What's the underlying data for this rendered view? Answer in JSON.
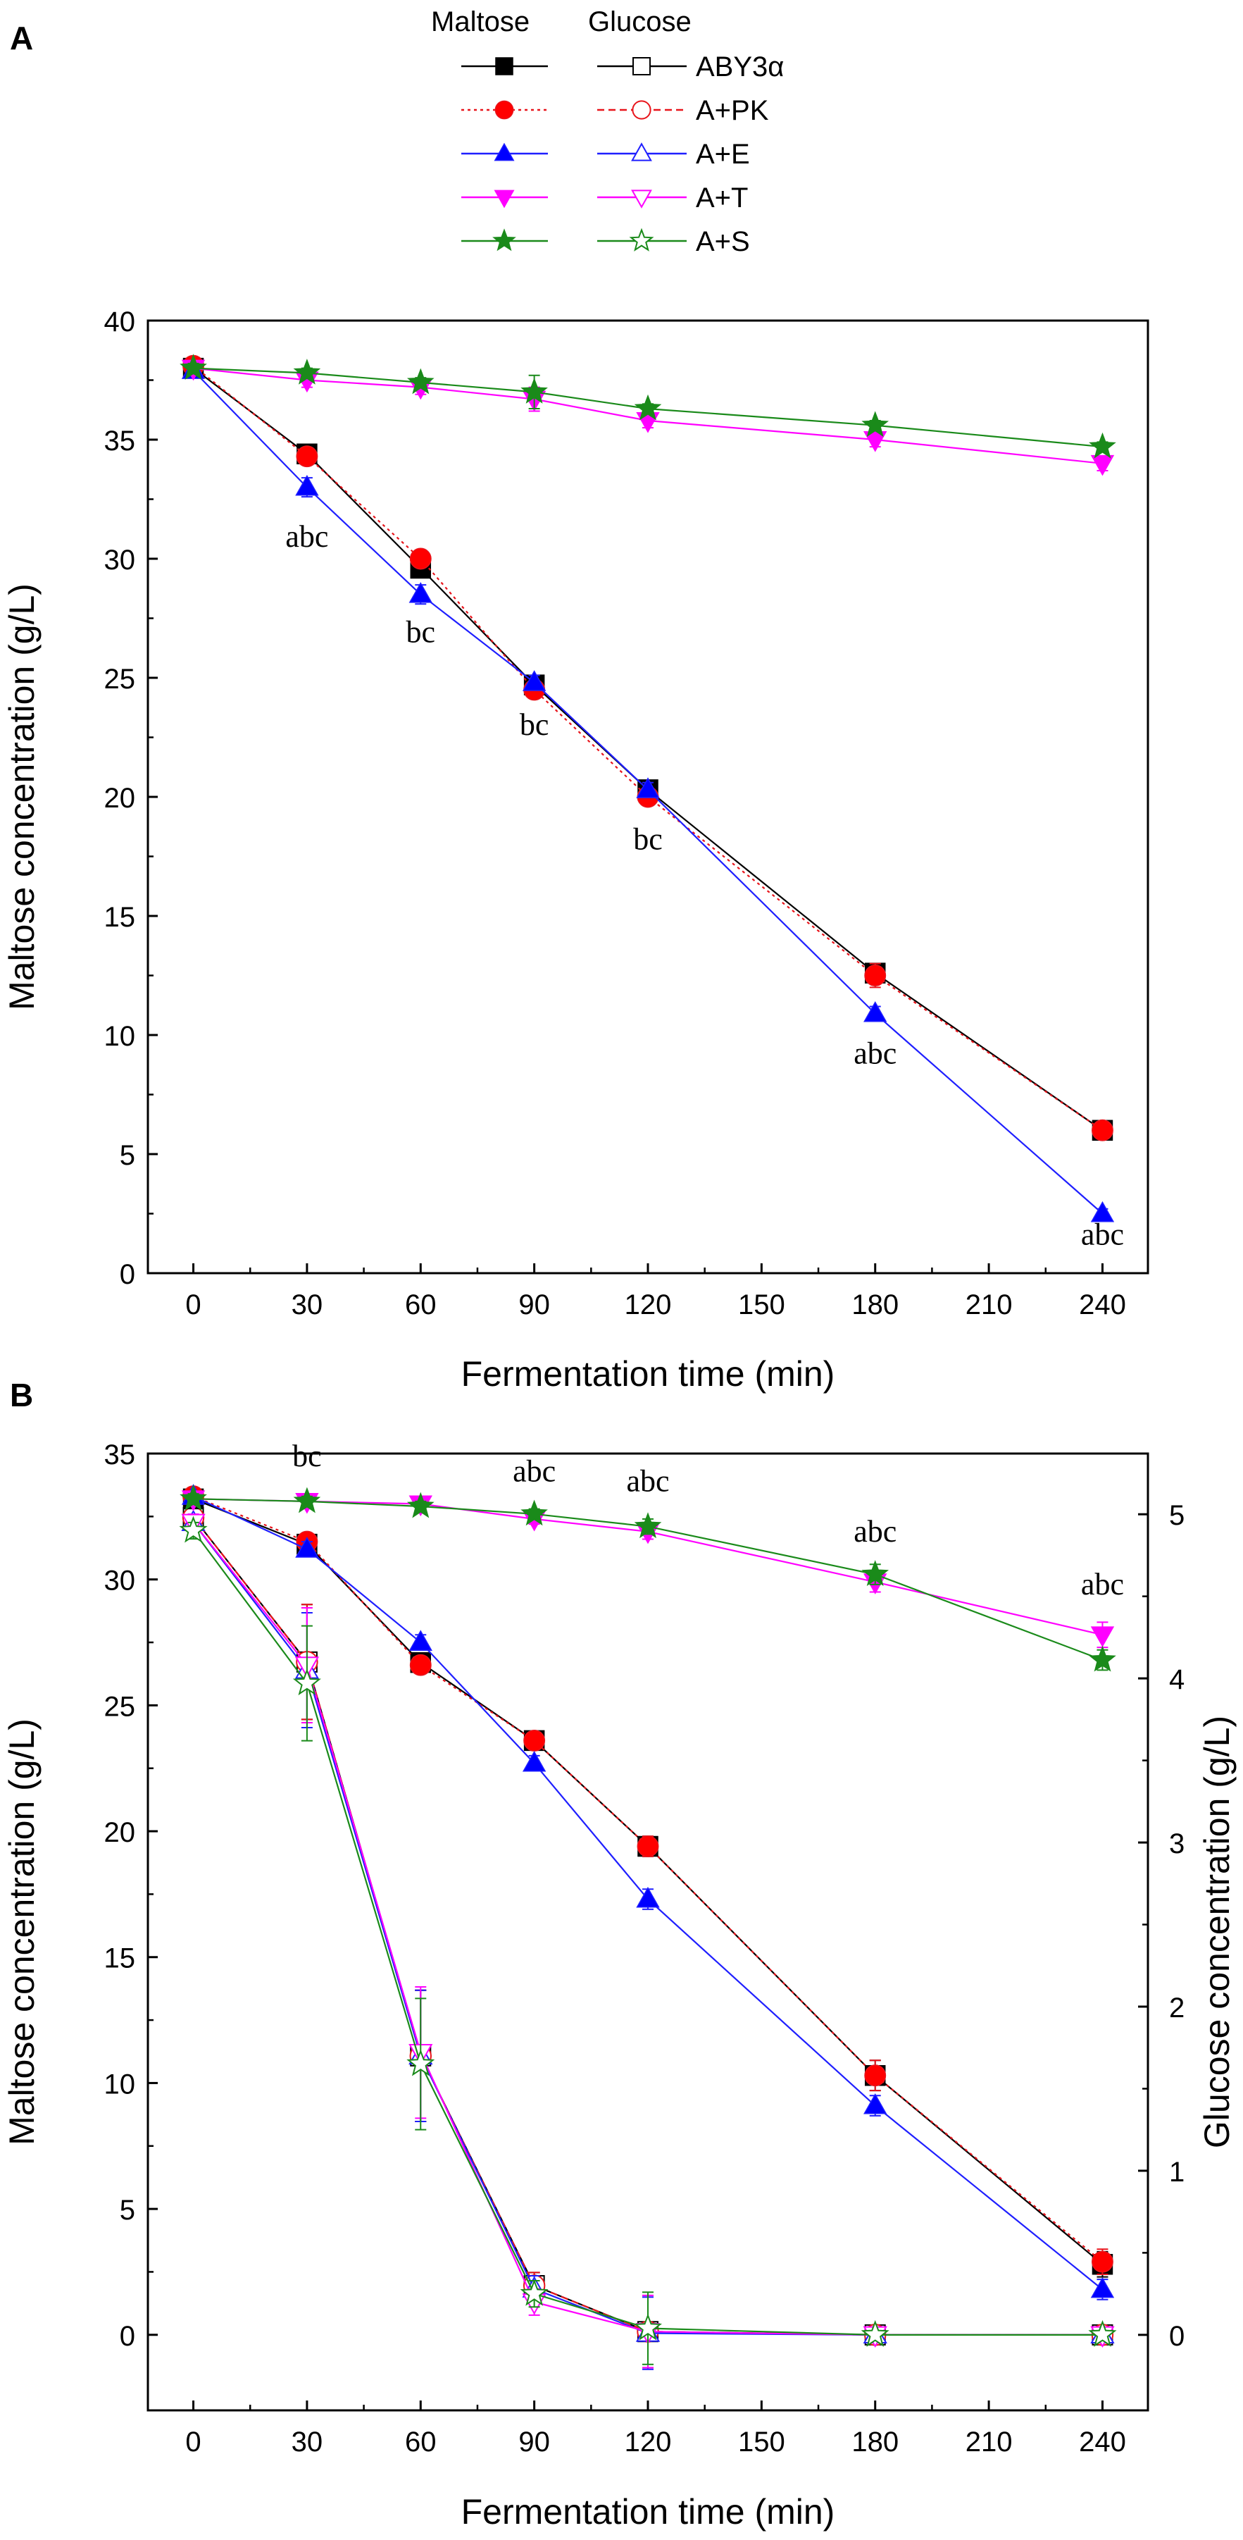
{
  "legend": {
    "header_maltose": "Maltose",
    "header_glucose": "Glucose",
    "entries": [
      {
        "label": "ABY3α",
        "color": "#000000",
        "maltose_marker": "square",
        "glucose_marker": "square-open",
        "maltose_dash": "solid",
        "glucose_dash": "solid",
        "marker_fill": "#000000"
      },
      {
        "label": "A+PK",
        "color": "#e8141b",
        "maltose_marker": "circle",
        "glucose_marker": "circle-open",
        "maltose_dash": "dotted",
        "glucose_dash": "dashed",
        "marker_fill": "#ff0000"
      },
      {
        "label": "A+E",
        "color": "#1f1fff",
        "maltose_marker": "triangle-up",
        "glucose_marker": "triangle-up-open",
        "maltose_dash": "solid",
        "glucose_dash": "solid",
        "marker_fill": "#0000ff"
      },
      {
        "label": "A+T",
        "color": "#ff00ff",
        "maltose_marker": "triangle-down",
        "glucose_marker": "triangle-down-open",
        "maltose_dash": "solid",
        "glucose_dash": "solid",
        "marker_fill": "#ff00ff"
      },
      {
        "label": "A+S",
        "color": "#1a8a1a",
        "maltose_marker": "star",
        "glucose_marker": "star-open",
        "maltose_dash": "solid",
        "glucose_dash": "solid",
        "marker_fill": "#1a8a1a"
      }
    ]
  },
  "chart_data": [
    {
      "panel": "A",
      "type": "line",
      "xlabel": "Fermentation time (min)",
      "ylabel": "Maltose concentration (g/L)",
      "xlim": [
        -12,
        252
      ],
      "ylim": [
        0,
        40
      ],
      "xticks": [
        0,
        30,
        60,
        90,
        120,
        150,
        180,
        210,
        240
      ],
      "yticks": [
        0,
        5,
        10,
        15,
        20,
        25,
        30,
        35,
        40
      ],
      "series": [
        {
          "name": "ABY3α",
          "kind": "maltose",
          "x": [
            0,
            30,
            60,
            90,
            120,
            180,
            240
          ],
          "y": [
            38.0,
            34.4,
            29.6,
            24.7,
            20.3,
            12.6,
            6.0
          ],
          "err": [
            0.2,
            0.2,
            0.3,
            0.3,
            0.3,
            0.4,
            0.3
          ]
        },
        {
          "name": "A+PK",
          "kind": "maltose",
          "x": [
            0,
            30,
            60,
            90,
            120,
            180,
            240
          ],
          "y": [
            38.1,
            34.3,
            30.0,
            24.5,
            20.0,
            12.5,
            6.0
          ],
          "err": [
            0.2,
            0.3,
            0.3,
            0.3,
            0.3,
            0.5,
            0.3
          ]
        },
        {
          "name": "A+E",
          "kind": "maltose",
          "x": [
            0,
            30,
            60,
            90,
            120,
            180,
            240
          ],
          "y": [
            37.9,
            33.0,
            28.5,
            24.8,
            20.3,
            10.9,
            2.5
          ],
          "err": [
            0.2,
            0.4,
            0.4,
            0.3,
            0.3,
            0.3,
            0.2
          ]
        },
        {
          "name": "A+T",
          "kind": "maltose",
          "x": [
            0,
            30,
            60,
            90,
            120,
            180,
            240
          ],
          "y": [
            38.0,
            37.5,
            37.2,
            36.7,
            35.8,
            35.0,
            34.0
          ],
          "err": [
            0.3,
            0.3,
            0.3,
            0.5,
            0.3,
            0.3,
            0.3
          ]
        },
        {
          "name": "A+S",
          "kind": "maltose",
          "x": [
            0,
            30,
            60,
            90,
            120,
            180,
            240
          ],
          "y": [
            38.0,
            37.8,
            37.4,
            37.0,
            36.3,
            35.6,
            34.7
          ],
          "err": [
            0.2,
            0.2,
            0.2,
            0.7,
            0.2,
            0.2,
            0.2
          ]
        }
      ],
      "annotations": [
        {
          "x": 30,
          "y": 30.5,
          "text": "abc"
        },
        {
          "x": 60,
          "y": 26.5,
          "text": "bc"
        },
        {
          "x": 90,
          "y": 22.6,
          "text": "bc"
        },
        {
          "x": 120,
          "y": 17.8,
          "text": "bc"
        },
        {
          "x": 180,
          "y": 8.8,
          "text": "abc"
        },
        {
          "x": 240,
          "y": 1.2,
          "text": "abc"
        }
      ]
    },
    {
      "panel": "B",
      "type": "line",
      "xlabel": "Fermentation time (min)",
      "ylabel": "Maltose concentration (g/L)",
      "ylabel_right": "Glucose concentration (g/L)",
      "xlim": [
        -12,
        252
      ],
      "ylim": [
        -3,
        35
      ],
      "ylim_right": [
        -0.46,
        5.37
      ],
      "xticks": [
        0,
        30,
        60,
        90,
        120,
        150,
        180,
        210,
        240
      ],
      "yticks": [
        0,
        5,
        10,
        15,
        20,
        25,
        30,
        35
      ],
      "yticks_right": [
        0,
        1,
        2,
        3,
        4,
        5
      ],
      "series": [
        {
          "name": "ABY3α",
          "kind": "maltose",
          "x": [
            0,
            30,
            60,
            90,
            120,
            180,
            240
          ],
          "y": [
            33.2,
            31.4,
            26.7,
            23.6,
            19.4,
            10.3,
            2.8
          ],
          "err": [
            0.2,
            0.3,
            0.3,
            0.3,
            0.4,
            0.6,
            0.5
          ]
        },
        {
          "name": "A+PK",
          "kind": "maltose",
          "x": [
            0,
            30,
            60,
            90,
            120,
            180,
            240
          ],
          "y": [
            33.3,
            31.5,
            26.6,
            23.6,
            19.4,
            10.3,
            2.9
          ],
          "err": [
            0.2,
            0.3,
            0.3,
            0.3,
            0.4,
            0.6,
            0.5
          ]
        },
        {
          "name": "A+E",
          "kind": "maltose",
          "x": [
            0,
            30,
            60,
            90,
            120,
            180,
            240
          ],
          "y": [
            33.3,
            31.2,
            27.5,
            22.7,
            17.3,
            9.1,
            1.8
          ],
          "err": [
            0.2,
            0.3,
            0.3,
            0.3,
            0.4,
            0.4,
            0.4
          ]
        },
        {
          "name": "A+T",
          "kind": "maltose",
          "x": [
            0,
            30,
            60,
            90,
            120,
            180,
            240
          ],
          "y": [
            33.2,
            33.1,
            33.0,
            32.4,
            31.9,
            29.9,
            27.8
          ],
          "err": [
            0.2,
            0.2,
            0.2,
            0.2,
            0.3,
            0.4,
            0.5
          ]
        },
        {
          "name": "A+S",
          "kind": "maltose",
          "x": [
            0,
            30,
            60,
            90,
            120,
            180,
            240
          ],
          "y": [
            33.2,
            33.1,
            32.9,
            32.6,
            32.1,
            30.2,
            26.8
          ],
          "err": [
            0.2,
            0.2,
            0.2,
            0.2,
            0.3,
            0.4,
            0.4
          ]
        },
        {
          "name": "ABY3α",
          "kind": "glucose",
          "x": [
            0,
            30,
            60,
            90,
            120,
            180,
            240
          ],
          "y": [
            4.98,
            4.1,
            1.7,
            0.3,
            0.02,
            0.0,
            0.0
          ],
          "err": [
            0.05,
            0.35,
            0.4,
            0.08,
            0.22,
            0.02,
            0.02
          ]
        },
        {
          "name": "A+PK",
          "kind": "glucose",
          "x": [
            0,
            30,
            60,
            90,
            120,
            180,
            240
          ],
          "y": [
            4.98,
            4.1,
            1.7,
            0.3,
            0.02,
            0.0,
            0.0
          ],
          "err": [
            0.05,
            0.35,
            0.4,
            0.08,
            0.22,
            0.02,
            0.02
          ]
        },
        {
          "name": "A+E",
          "kind": "glucose",
          "x": [
            0,
            30,
            60,
            90,
            120,
            180,
            240
          ],
          "y": [
            4.95,
            4.05,
            1.7,
            0.28,
            0.01,
            0.0,
            0.0
          ],
          "err": [
            0.05,
            0.35,
            0.4,
            0.08,
            0.22,
            0.02,
            0.02
          ]
        },
        {
          "name": "A+T",
          "kind": "glucose",
          "x": [
            0,
            30,
            60,
            90,
            120,
            180,
            240
          ],
          "y": [
            4.95,
            4.08,
            1.72,
            0.2,
            0.02,
            0.0,
            0.0
          ],
          "err": [
            0.05,
            0.35,
            0.4,
            0.08,
            0.22,
            0.02,
            0.02
          ]
        },
        {
          "name": "A+S",
          "kind": "glucose",
          "x": [
            0,
            30,
            60,
            90,
            120,
            180,
            240
          ],
          "y": [
            4.9,
            3.97,
            1.65,
            0.25,
            0.04,
            0.0,
            0.0
          ],
          "err": [
            0.05,
            0.35,
            0.4,
            0.08,
            0.22,
            0.02,
            0.02
          ]
        }
      ],
      "annotations": [
        {
          "x": 30,
          "y": 34.5,
          "text": "bc"
        },
        {
          "x": 90,
          "y": 33.9,
          "text": "abc"
        },
        {
          "x": 120,
          "y": 33.5,
          "text": "abc"
        },
        {
          "x": 180,
          "y": 31.5,
          "text": "abc"
        },
        {
          "x": 240,
          "y": 29.4,
          "text": "abc"
        }
      ]
    }
  ],
  "panel_labels": [
    "A",
    "B"
  ]
}
